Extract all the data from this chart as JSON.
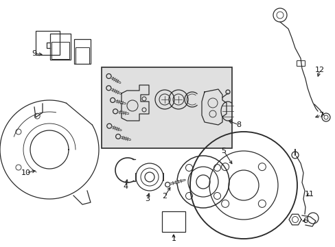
{
  "bg_color": "#ffffff",
  "line_color": "#2a2a2a",
  "box_bg": "#e0e0e0",
  "box_border": "#2a2a2a",
  "label_color": "#111111",
  "fig_w": 4.89,
  "fig_h": 3.6,
  "dpi": 100
}
